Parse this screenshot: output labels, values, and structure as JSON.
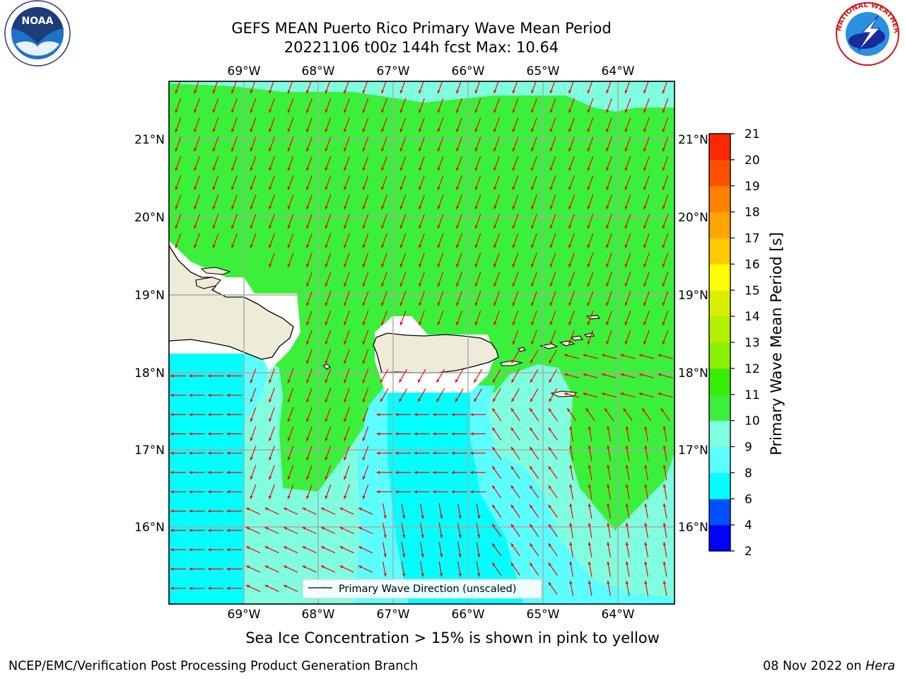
{
  "title": {
    "line1": "GEFS MEAN Puerto Rico Primary Wave Mean Period",
    "line2": "20221106 t00z 144h fcst   Max: 10.64"
  },
  "map": {
    "lon_labels": [
      "69°W",
      "68°W",
      "67°W",
      "66°W",
      "65°W",
      "64°W"
    ],
    "lat_labels": [
      "21°N",
      "20°N",
      "19°N",
      "18°N",
      "17°N",
      "16°N"
    ],
    "legend_label": "Primary Wave Direction (unscaled)",
    "arrow_color": "#ff0000",
    "land_color": "#efebd9",
    "colors": {
      "period_10_11": "#3bf03b",
      "period_9_10": "#7fffe0",
      "period_8_9": "#5cffff",
      "period_6_8": "#00ffff"
    }
  },
  "colorbar": {
    "label": "Primary Wave Mean Period [s]",
    "ticks": [
      "2",
      "4",
      "6",
      "8",
      "9",
      "10",
      "11",
      "12",
      "13",
      "14",
      "15",
      "16",
      "17",
      "18",
      "19",
      "20",
      "21"
    ],
    "colors": [
      "#0000ff",
      "#0050ff",
      "#00ffff",
      "#5cffff",
      "#7fffe0",
      "#3bf03b",
      "#34ee08",
      "#88f000",
      "#b4f000",
      "#d8f000",
      "#ffff00",
      "#ffc800",
      "#ffa400",
      "#ff8000",
      "#ff5000",
      "#ff2800",
      "#ff0000"
    ]
  },
  "note": "Sea Ice Concentration > 15% is shown in pink to yellow",
  "footer": {
    "left": "NCEP/EMC/Verification Post Processing Product Generation Branch",
    "right_prefix": "08 Nov 2022 on ",
    "right_host": "Hera"
  },
  "logos": {
    "noaa_text": "NOAA",
    "nws_text": "NATIONAL WEATHER SERVICE"
  }
}
